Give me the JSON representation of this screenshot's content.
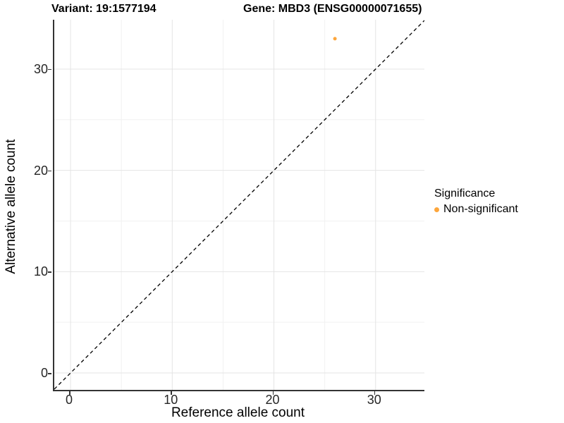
{
  "titles": {
    "variant": "Variant: 19:1577194",
    "gene": "Gene: MBD3 (ENSG00000071655)"
  },
  "chart_data": {
    "type": "scatter",
    "title_left": "Variant: 19:1577194",
    "title_right": "Gene: MBD3 (ENSG00000071655)",
    "xlabel": "Reference allele count",
    "ylabel": "Alternative allele count",
    "xlim": [
      -1.6,
      34.8
    ],
    "ylim": [
      -1.67,
      34.87
    ],
    "x_ticks": [
      0,
      10,
      20,
      30
    ],
    "y_ticks": [
      0,
      10,
      20,
      30
    ],
    "x_minor_ticks": [
      5,
      15,
      25
    ],
    "y_minor_ticks": [
      5,
      15,
      25
    ],
    "grid": true,
    "points": [
      {
        "x": 26,
        "y": 33,
        "series": "Non-significant"
      }
    ],
    "reference_line": {
      "kind": "identity",
      "slope": 1,
      "intercept": 0,
      "style": "dashed",
      "color": "#000000"
    },
    "legend": {
      "position": "right",
      "title": "Significance",
      "entries": [
        {
          "label": "Non-significant",
          "color": "#FDA63C"
        }
      ]
    },
    "colors": {
      "point": "#FDA63C",
      "grid_major": "#E4E4E4",
      "grid_minor": "#F1F1F1",
      "axis_line": "#333333",
      "background": "#FFFFFF"
    }
  }
}
